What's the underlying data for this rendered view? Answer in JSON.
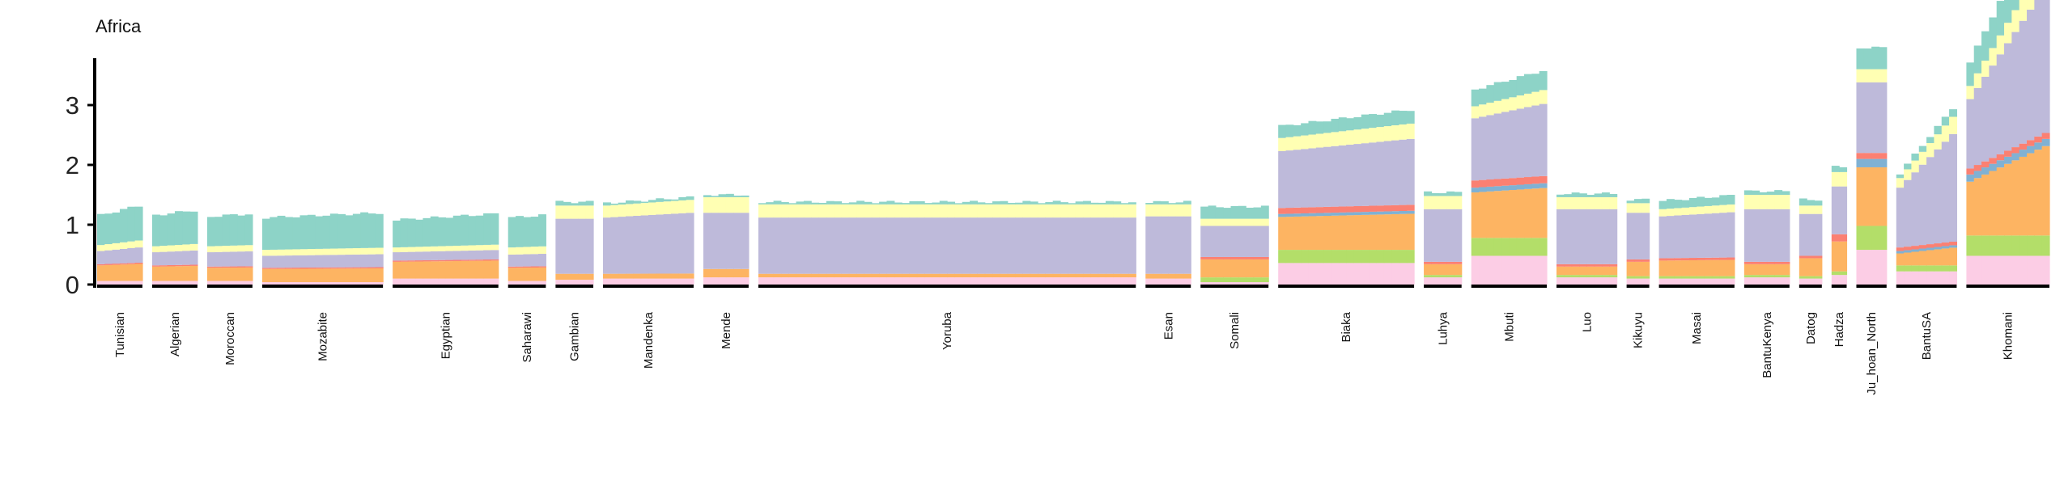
{
  "chart_data": {
    "type": "bar",
    "stacked": true,
    "title": "Africa",
    "xlabel": "",
    "ylabel": "",
    "ylim": [
      0,
      3.75
    ],
    "yticks": [
      0,
      1,
      2,
      3
    ],
    "grid": false,
    "legend": "none",
    "component_colors": [
      "#FCCDE5",
      "#B3DE69",
      "#FDB462",
      "#80B1D3",
      "#FB8072",
      "#BEBADA",
      "#FFFFB3",
      "#8DD3C7"
    ],
    "populations": [
      {
        "name": "Tunisian",
        "n": 6,
        "components": [
          0.06,
          0.0,
          0.26,
          0.0,
          0.02,
          0.22,
          0.1,
          0.5
        ],
        "trend": 0.08
      },
      {
        "name": "Algerian",
        "n": 6,
        "components": [
          0.06,
          0.0,
          0.24,
          0.0,
          0.02,
          0.22,
          0.1,
          0.52
        ],
        "trend": 0.04
      },
      {
        "name": "Moroccan",
        "n": 6,
        "components": [
          0.06,
          0.0,
          0.22,
          0.0,
          0.02,
          0.24,
          0.1,
          0.5
        ],
        "trend": 0.02
      },
      {
        "name": "Mozabite",
        "n": 16,
        "components": [
          0.04,
          0.0,
          0.22,
          0.0,
          0.02,
          0.2,
          0.1,
          0.54
        ],
        "trend": 0.04
      },
      {
        "name": "Egyptian",
        "n": 14,
        "components": [
          0.1,
          0.0,
          0.28,
          0.0,
          0.02,
          0.14,
          0.08,
          0.46
        ],
        "trend": 0.06
      },
      {
        "name": "Saharawi",
        "n": 5,
        "components": [
          0.06,
          0.0,
          0.22,
          0.0,
          0.02,
          0.2,
          0.12,
          0.5
        ],
        "trend": 0.02
      },
      {
        "name": "Gambian",
        "n": 5,
        "components": [
          0.08,
          0.0,
          0.1,
          0.0,
          0.0,
          0.92,
          0.22,
          0.06
        ],
        "trend": 0.0
      },
      {
        "name": "Mandenka",
        "n": 12,
        "components": [
          0.1,
          0.0,
          0.08,
          0.0,
          0.0,
          0.94,
          0.2,
          0.04
        ],
        "trend": 0.04
      },
      {
        "name": "Mende",
        "n": 6,
        "components": [
          0.12,
          0.0,
          0.14,
          0.0,
          0.0,
          0.94,
          0.26,
          0.04
        ],
        "trend": 0.0
      },
      {
        "name": "Yoruba",
        "n": 50,
        "components": [
          0.12,
          0.0,
          0.06,
          0.0,
          0.0,
          0.94,
          0.22,
          0.04
        ],
        "trend": 0.0
      },
      {
        "name": "Esan",
        "n": 6,
        "components": [
          0.1,
          0.0,
          0.08,
          0.0,
          0.0,
          0.96,
          0.2,
          0.04
        ],
        "trend": 0.0
      },
      {
        "name": "Somali",
        "n": 9,
        "components": [
          0.04,
          0.08,
          0.3,
          0.0,
          0.04,
          0.52,
          0.12,
          0.2
        ],
        "trend": 0.0
      },
      {
        "name": "Biaka",
        "n": 18,
        "components": [
          0.36,
          0.22,
          0.55,
          0.05,
          0.1,
          0.95,
          0.22,
          0.2
        ],
        "trend": 0.08
      },
      {
        "name": "Luhya",
        "n": 5,
        "components": [
          0.12,
          0.04,
          0.18,
          0.0,
          0.04,
          0.88,
          0.22,
          0.06
        ],
        "trend": 0.0
      },
      {
        "name": "Mbuti",
        "n": 10,
        "components": [
          0.48,
          0.3,
          0.76,
          0.08,
          0.12,
          1.04,
          0.2,
          0.28
        ],
        "trend": 0.08
      },
      {
        "name": "Luo",
        "n": 8,
        "components": [
          0.12,
          0.04,
          0.14,
          0.0,
          0.04,
          0.92,
          0.2,
          0.06
        ],
        "trend": 0.0
      },
      {
        "name": "Kikuyu",
        "n": 3,
        "components": [
          0.1,
          0.04,
          0.24,
          0.0,
          0.04,
          0.78,
          0.16,
          0.06
        ],
        "trend": 0.0
      },
      {
        "name": "Masai",
        "n": 10,
        "components": [
          0.1,
          0.04,
          0.26,
          0.0,
          0.04,
          0.7,
          0.12,
          0.14
        ],
        "trend": 0.04
      },
      {
        "name": "BantuKenya",
        "n": 6,
        "components": [
          0.12,
          0.04,
          0.18,
          0.0,
          0.04,
          0.88,
          0.24,
          0.06
        ],
        "trend": 0.0
      },
      {
        "name": "Datog",
        "n": 3,
        "components": [
          0.1,
          0.04,
          0.3,
          0.0,
          0.04,
          0.7,
          0.14,
          0.1
        ],
        "trend": 0.0
      },
      {
        "name": "Hadza",
        "n": 2,
        "components": [
          0.16,
          0.06,
          0.5,
          0.0,
          0.12,
          0.8,
          0.24,
          0.1
        ],
        "trend": 0.0
      },
      {
        "name": "Ju_hoan_North",
        "n": 4,
        "components": [
          0.58,
          0.4,
          0.98,
          0.14,
          0.1,
          1.18,
          0.22,
          0.36
        ],
        "trend": 0.0
      },
      {
        "name": "BantuSA",
        "n": 8,
        "components": [
          0.22,
          0.1,
          0.2,
          0.04,
          0.06,
          1.0,
          0.16,
          0.08
        ],
        "trend": 0.4
      },
      {
        "name": "Khomani",
        "n": 11,
        "components": [
          0.48,
          0.34,
          0.9,
          0.12,
          0.1,
          1.16,
          0.22,
          0.4
        ],
        "trend": 0.55
      }
    ]
  }
}
